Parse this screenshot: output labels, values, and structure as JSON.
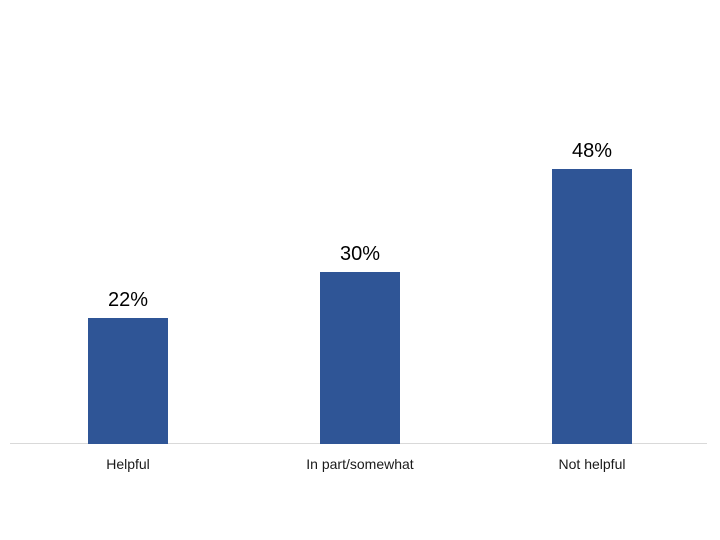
{
  "chart_data": {
    "type": "bar",
    "categories": [
      "Helpful",
      "In part/somewhat",
      "Not helpful"
    ],
    "values": [
      22,
      30,
      48
    ],
    "value_labels": [
      "22%",
      "30%",
      "48%"
    ],
    "title": "",
    "xlabel": "",
    "ylabel": "",
    "ylim": [
      0,
      50
    ],
    "grid": false,
    "legend": false,
    "colors": {
      "bar_fill": "#2f5596",
      "axis_line": "#d9d9d9",
      "value_label_text": "#000000",
      "category_label_text": "#1a1a1a",
      "background": "#ffffff"
    }
  }
}
